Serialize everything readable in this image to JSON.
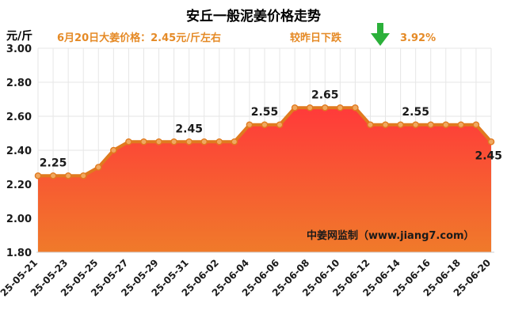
{
  "chart_data": {
    "type": "area",
    "title": "安丘一般泥姜价格走势",
    "subtitle": {
      "price_text": "6月20日大姜价格：2.45元/斤左右",
      "change_text": "较昨日下跌",
      "change_pct": "3.92%",
      "direction": "down"
    },
    "ylabel": "元/斤",
    "ylim": [
      1.8,
      3.0
    ],
    "yticks": [
      "1.80",
      "2.00",
      "2.20",
      "2.40",
      "2.60",
      "2.80",
      "3.00"
    ],
    "ytick_values": [
      1.8,
      2.0,
      2.2,
      2.4,
      2.6,
      2.8,
      3.0
    ],
    "x": [
      "25-05-21",
      "25-05-22",
      "25-05-23",
      "25-05-24",
      "25-05-25",
      "25-05-26",
      "25-05-27",
      "25-05-28",
      "25-05-29",
      "25-05-30",
      "25-05-31",
      "25-06-01",
      "25-06-02",
      "25-06-03",
      "25-06-04",
      "25-06-05",
      "25-06-06",
      "25-06-07",
      "25-06-08",
      "25-06-09",
      "25-06-10",
      "25-06-11",
      "25-06-12",
      "25-06-13",
      "25-06-14",
      "25-06-15",
      "25-06-16",
      "25-06-17",
      "25-06-18",
      "25-06-19",
      "25-06-20"
    ],
    "xtick_labels": [
      "25-05-21",
      "25-05-23",
      "25-05-25",
      "25-05-27",
      "25-05-29",
      "25-05-31",
      "25-06-02",
      "25-06-04",
      "25-06-06",
      "25-06-08",
      "25-06-10",
      "25-06-12",
      "25-06-14",
      "25-06-16",
      "25-06-18",
      "25-06-20"
    ],
    "values": [
      2.25,
      2.25,
      2.25,
      2.25,
      2.3,
      2.4,
      2.45,
      2.45,
      2.45,
      2.45,
      2.45,
      2.45,
      2.45,
      2.45,
      2.55,
      2.55,
      2.55,
      2.65,
      2.65,
      2.65,
      2.65,
      2.65,
      2.55,
      2.55,
      2.55,
      2.55,
      2.55,
      2.55,
      2.55,
      2.55,
      2.45
    ],
    "data_labels": [
      {
        "index": 1,
        "text": "2.25"
      },
      {
        "index": 10,
        "text": "2.45"
      },
      {
        "index": 15,
        "text": "2.55"
      },
      {
        "index": 19,
        "text": "2.65"
      },
      {
        "index": 25,
        "text": "2.55"
      },
      {
        "index": 30,
        "text": "2.45"
      }
    ],
    "watermark": "中姜网监制（www.jiang7.com）",
    "colors": {
      "line": "#e07a1f",
      "marker_fill": "#f0a860",
      "area_top": "#ff3a3a",
      "area_bottom": "#f07a2a",
      "arrow": "#2bb03a",
      "grid": "#e6e6e6"
    }
  }
}
